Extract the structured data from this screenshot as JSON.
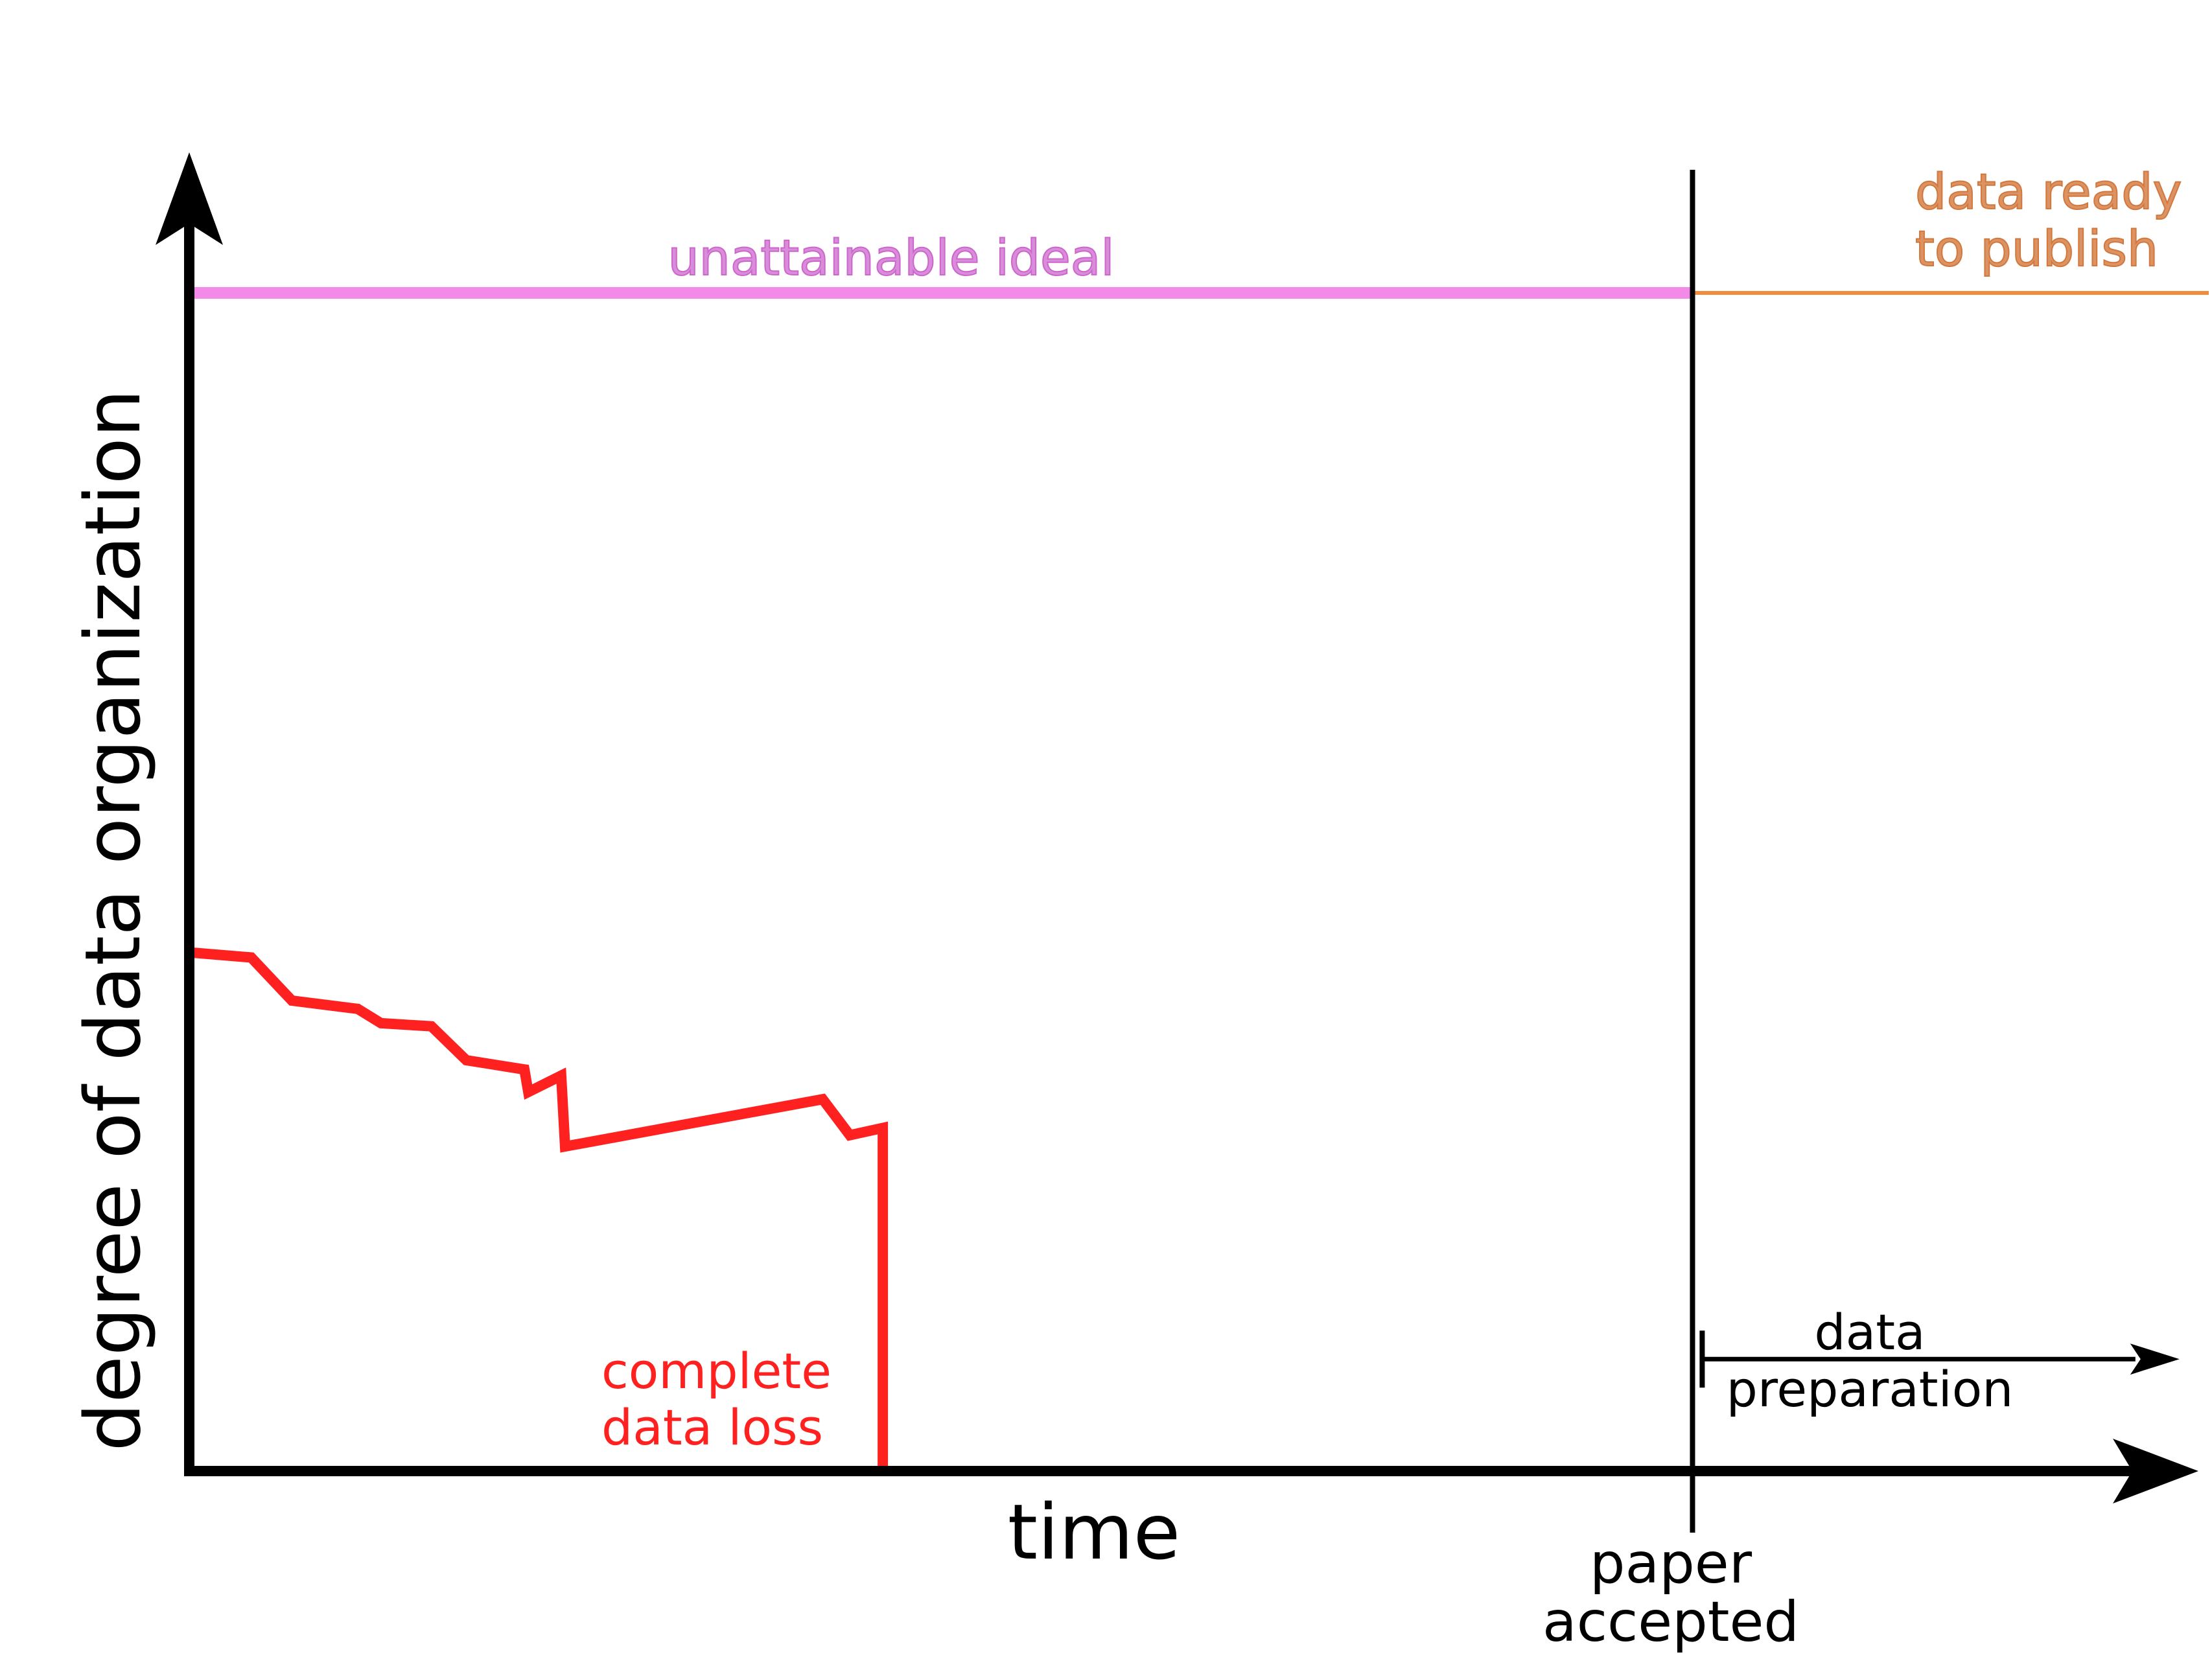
{
  "chart_data": {
    "type": "line",
    "title": "",
    "xlabel": "time",
    "ylabel": "degree of data organization",
    "x_range": [
      0,
      100
    ],
    "y_range": [
      0,
      100
    ],
    "grid": false,
    "legend": "none",
    "series": [
      {
        "color": "#ff2020",
        "points": [
          [
            0,
            50.5
          ],
          [
            3.2,
            50.0
          ],
          [
            5.3,
            45.8
          ],
          [
            8.7,
            45.0
          ],
          [
            9.9,
            43.6
          ],
          [
            12.5,
            43.3
          ],
          [
            14.3,
            40.0
          ],
          [
            17.3,
            39.1
          ],
          [
            17.5,
            36.9
          ],
          [
            19.2,
            38.5
          ],
          [
            19.4,
            31.6
          ],
          [
            32.7,
            36.2
          ],
          [
            34.1,
            32.7
          ],
          [
            35.8,
            33.4
          ],
          [
            35.8,
            0
          ]
        ]
      }
    ],
    "annotations": {
      "ideal": {
        "label": "unattainable ideal",
        "y": 114.7,
        "x_end": 77.6,
        "color": "#f48ae8",
        "label_color": "#cc66cc"
      },
      "ready": {
        "label_line1": "data ready",
        "label_line2": "to publish",
        "y": 114.7,
        "x_start": 77.6,
        "color": "#f08c3c",
        "label_color": "#d2783c"
      },
      "accepted": {
        "label_line1": "paper",
        "label_line2": "accepted",
        "x": 77.6
      },
      "preparation": {
        "label_line1": "data",
        "label_line2": "preparation",
        "x_start": 78.1,
        "x_end": 101.8,
        "y": 10.9
      },
      "loss": {
        "label_line1": "complete",
        "label_line2": "data loss",
        "color": "#ff2020"
      }
    }
  }
}
